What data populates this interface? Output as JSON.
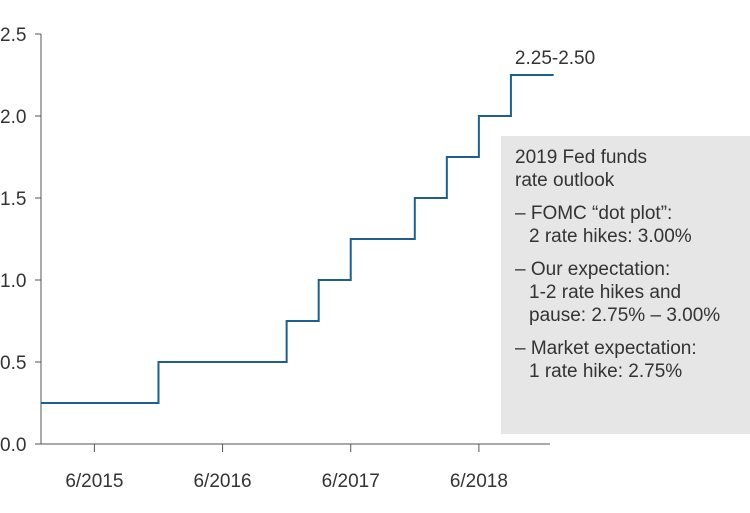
{
  "chart_data": {
    "type": "line",
    "step": true,
    "ylim": [
      0,
      2.5
    ],
    "yticks": [
      "0.0",
      "0.5",
      "1.0",
      "1.5",
      "2.0",
      "2.5"
    ],
    "xticks": [
      "6/2015",
      "6/2016",
      "6/2017",
      "6/2018"
    ],
    "line_color": "#1f5f8b",
    "series": [
      {
        "x": [
          "2015-01",
          "2015-12",
          "2016-12",
          "2017-03",
          "2017-06",
          "2017-12",
          "2018-03",
          "2018-06",
          "2018-09",
          "2018-12",
          "2019-01"
        ],
        "values": [
          0.25,
          0.5,
          0.75,
          1.0,
          1.25,
          1.5,
          1.75,
          2.0,
          2.25,
          2.25,
          2.25
        ]
      }
    ],
    "annotation": "2.25-2.50"
  },
  "outlook_box": {
    "title_lines": [
      "2019 Fed funds",
      "rate outlook"
    ],
    "items": [
      {
        "lines": [
          "– FOMC “dot plot”:",
          "2 rate hikes: 3.00%"
        ]
      },
      {
        "lines": [
          "– Our expectation:",
          "1-2 rate hikes and",
          "pause: 2.75% – 3.00%"
        ]
      },
      {
        "lines": [
          "– Market expectation:",
          "1 rate hike: 2.75%"
        ]
      }
    ]
  }
}
